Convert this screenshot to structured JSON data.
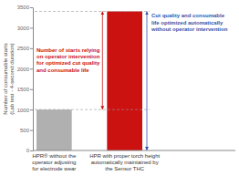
{
  "chart_data": {
    "type": "bar",
    "categories": [
      "HPR® without the\noperator adjusting\nfor electrode wear",
      "HPR with proper torch height\nautomatically maintained by\nthe Sensor THC"
    ],
    "values": [
      1000,
      3400
    ],
    "colors": [
      "#b0b0b0",
      "#cc1111"
    ],
    "ylabel": "Number of consumable starts\n(Lab test - 4-second duration)",
    "ylim": [
      0,
      3500
    ],
    "yticks": [
      0,
      500,
      1000,
      1500,
      2000,
      2500,
      3000,
      3500
    ],
    "grid": false,
    "reference_lines": [
      3400,
      1000
    ],
    "annotations": [
      {
        "text": "Number of starts relying\non operator intervention\nfor optimized cut quality\nand consumable life",
        "color": "#cc1111",
        "from": 1000,
        "to": 3400
      },
      {
        "text": "Cut quality and consumable\nlife optimized automatically\nwithout operator intervention",
        "color": "#3355aa",
        "from": 0,
        "to": 3400
      }
    ]
  }
}
